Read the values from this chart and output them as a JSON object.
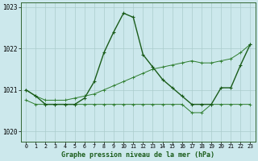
{
  "title": "Graphe pression niveau de la mer (hPa)",
  "bg_color": "#cce8ec",
  "grid_color": "#aacccc",
  "line_color_dark": "#1a5c1a",
  "line_color_med": "#2e7d2e",
  "xlim": [
    -0.5,
    23.5
  ],
  "ylim": [
    1019.75,
    1023.1
  ],
  "yticks": [
    1020,
    1021,
    1022,
    1023
  ],
  "xticks": [
    0,
    1,
    2,
    3,
    4,
    5,
    6,
    7,
    8,
    9,
    10,
    11,
    12,
    13,
    14,
    15,
    16,
    17,
    18,
    19,
    20,
    21,
    22,
    23
  ],
  "series1": [
    1021.0,
    1020.85,
    1020.65,
    1020.65,
    1020.65,
    1020.65,
    1020.8,
    1021.2,
    1021.9,
    1022.4,
    1022.85,
    1022.75,
    1021.85,
    1021.55,
    1021.25,
    1021.05,
    1020.85,
    1020.65,
    1020.65,
    1020.65,
    1021.05,
    1021.05,
    1021.6,
    1022.1
  ],
  "series2": [
    1020.75,
    1020.65,
    1020.65,
    1020.65,
    1020.65,
    1020.65,
    1020.65,
    1020.65,
    1020.65,
    1020.65,
    1020.65,
    1020.65,
    1020.65,
    1020.65,
    1020.65,
    1020.65,
    1020.65,
    1020.45,
    1020.45,
    1020.65,
    1020.65,
    1020.65,
    1020.65,
    1020.65
  ],
  "series3": [
    1021.0,
    1020.85,
    1020.75,
    1020.75,
    1020.75,
    1020.8,
    1020.85,
    1020.9,
    1021.0,
    1021.1,
    1021.2,
    1021.3,
    1021.4,
    1021.5,
    1021.55,
    1021.6,
    1021.65,
    1021.7,
    1021.65,
    1021.65,
    1021.7,
    1021.75,
    1021.9,
    1022.1
  ]
}
